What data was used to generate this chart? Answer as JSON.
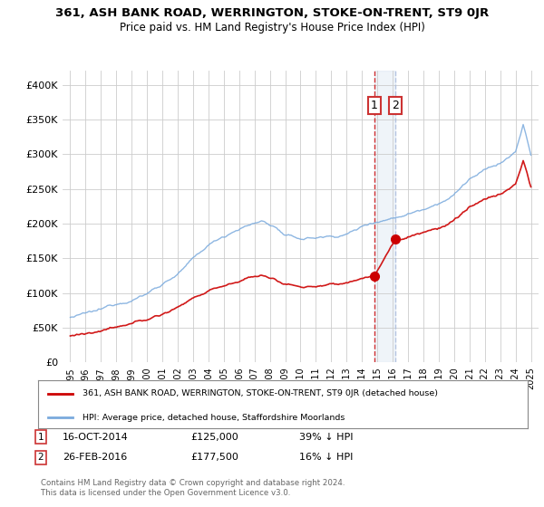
{
  "title": "361, ASH BANK ROAD, WERRINGTON, STOKE-ON-TRENT, ST9 0JR",
  "subtitle": "Price paid vs. HM Land Registry's House Price Index (HPI)",
  "ylim": [
    0,
    420000
  ],
  "yticks": [
    0,
    50000,
    100000,
    150000,
    200000,
    250000,
    300000,
    350000,
    400000
  ],
  "ytick_labels": [
    "£0",
    "£50K",
    "£100K",
    "£150K",
    "£200K",
    "£250K",
    "£300K",
    "£350K",
    "£400K"
  ],
  "sale1_date": "16-OCT-2014",
  "sale1_price": 125000,
  "sale1_pct": "39%",
  "sale2_date": "26-FEB-2016",
  "sale2_price": 177500,
  "sale2_pct": "16%",
  "legend_line1": "361, ASH BANK ROAD, WERRINGTON, STOKE-ON-TRENT, ST9 0JR (detached house)",
  "legend_line2": "HPI: Average price, detached house, Staffordshire Moorlands",
  "footer": "Contains HM Land Registry data © Crown copyright and database right 2024.\nThis data is licensed under the Open Government Licence v3.0.",
  "red_color": "#cc0000",
  "blue_color": "#7aaadd",
  "sale1_x": 2014.79,
  "sale2_x": 2016.15,
  "xlim_left": 1994.5,
  "xlim_right": 2025.5
}
